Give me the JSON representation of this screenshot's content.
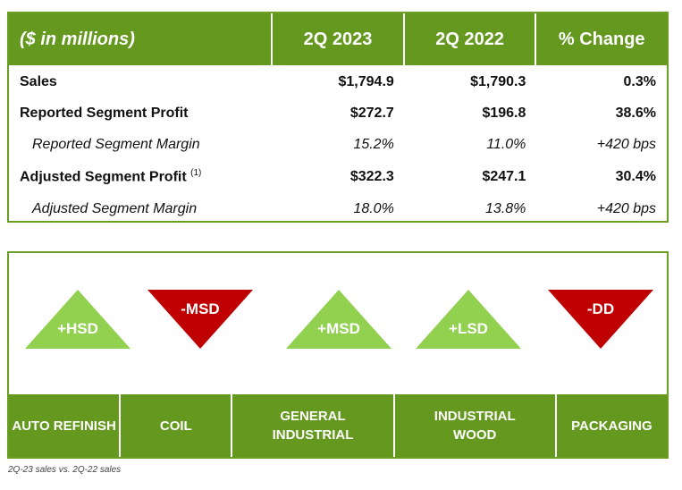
{
  "table": {
    "headers": [
      "($ in millions)",
      "2Q 2023",
      "2Q 2022",
      "% Change"
    ],
    "rows": [
      {
        "label": "Sales",
        "v2023": "$1,794.9",
        "v2022": "$1,790.3",
        "change": "0.3%"
      },
      {
        "label": "Reported Segment Profit",
        "v2023": "$272.7",
        "v2022": "$196.8",
        "change": "38.6%"
      },
      {
        "label": "Reported Segment Margin",
        "v2023": "15.2%",
        "v2022": "11.0%",
        "change": "+420 bps"
      },
      {
        "label": "Adjusted Segment Profit",
        "footnote": "(1)",
        "v2023": "$322.3",
        "v2022": "$247.1",
        "change": "30.4%"
      },
      {
        "label": "Adjusted Segment Margin",
        "v2023": "18.0%",
        "v2022": "13.8%",
        "change": "+420 bps"
      }
    ]
  },
  "segments": [
    {
      "name": "AUTO REFINISH",
      "indicator": "+HSD",
      "direction": "up"
    },
    {
      "name": "COIL",
      "indicator": "-MSD",
      "direction": "down"
    },
    {
      "name": "GENERAL INDUSTRIAL",
      "indicator": "+MSD",
      "direction": "up"
    },
    {
      "name": "INDUSTRIAL WOOD",
      "indicator": "+LSD",
      "direction": "up"
    },
    {
      "name": "PACKAGING",
      "indicator": "-DD",
      "direction": "down"
    }
  ],
  "colors": {
    "green": "#64981e",
    "up": "#92d050",
    "down": "#c00000"
  },
  "footnote": "2Q-23 sales vs. 2Q-22 sales"
}
